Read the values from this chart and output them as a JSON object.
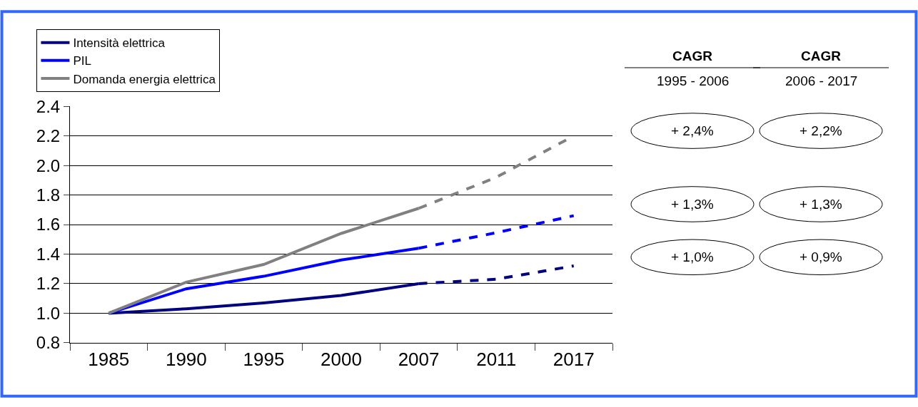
{
  "chart_data": {
    "type": "line",
    "categories": [
      "1985",
      "1990",
      "1995",
      "2000",
      "2007",
      "2011",
      "2017"
    ],
    "series": [
      {
        "name": "Intensità elettrica",
        "color": "#000080",
        "line_style": "solid",
        "values": [
          1.0,
          1.03,
          1.07,
          1.12,
          1.2,
          null,
          null
        ]
      },
      {
        "name": "PIL",
        "color": "#0000ff",
        "line_style": "solid",
        "values": [
          1.0,
          1.165,
          1.25,
          1.36,
          1.44,
          null,
          null
        ]
      },
      {
        "name": "Domanda energia elettrica",
        "color": "#808080",
        "line_style": "solid",
        "values": [
          1.0,
          1.21,
          1.33,
          1.54,
          1.71,
          null,
          null
        ]
      },
      {
        "color": "#000080",
        "line_style": "dashed",
        "values": [
          null,
          null,
          null,
          null,
          1.2,
          1.23,
          1.32
        ]
      },
      {
        "color": "#0000ff",
        "line_style": "dashed",
        "values": [
          null,
          null,
          null,
          null,
          1.44,
          1.545,
          1.66
        ]
      },
      {
        "color": "#808080",
        "line_style": "dashed",
        "values": [
          null,
          null,
          null,
          null,
          1.71,
          1.92,
          2.2
        ]
      }
    ],
    "ylim": [
      0.8,
      2.4
    ],
    "yticks": [
      {
        "value": 0.8,
        "label": "0.8"
      },
      {
        "value": 1.0,
        "label": "1.0"
      },
      {
        "value": 1.2,
        "label": "1.2"
      },
      {
        "value": 1.4,
        "label": "1.4"
      },
      {
        "value": 1.6,
        "label": "1.6"
      },
      {
        "value": 1.8,
        "label": "1.8"
      },
      {
        "value": 2.0,
        "label": "2.0"
      },
      {
        "value": 2.2,
        "label": "2.2"
      },
      {
        "value": 2.4,
        "label": "2.4"
      }
    ],
    "grid": "y",
    "legend": "top left",
    "marker": "none",
    "annotations": [
      "CAGR",
      "CAGR",
      "1995 - 2006",
      "2006 - 2017",
      "+ 2,4%",
      "+ 2,2%",
      "+ 1,3%",
      "+ 1,3%",
      "+ 1,0%",
      "+ 0,9%"
    ]
  }
}
